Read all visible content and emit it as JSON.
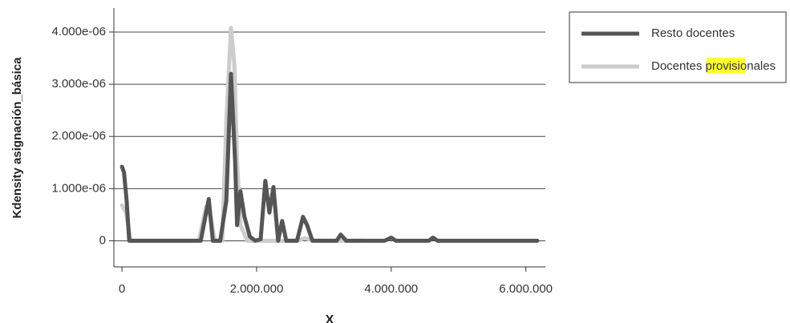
{
  "chart_data": {
    "type": "line",
    "y_label": "Kdensity asignación_básica",
    "x_label": "X",
    "xlim": [
      -120000,
      6290000
    ],
    "ylim": [
      -5e-07,
      4.46e-06
    ],
    "xticks": [
      0,
      {
        "value": 2000000,
        "label": "2.000.000"
      },
      {
        "value": 4000000,
        "label": "4.000.000"
      },
      {
        "value": 6000000,
        "label": "6.000.000"
      }
    ],
    "yticks": [
      0,
      {
        "value": 1e-06,
        "label": "1.000e-06"
      },
      {
        "value": 2e-06,
        "label": "2.000e-06"
      },
      {
        "value": 3e-06,
        "label": "3.000e-06"
      },
      {
        "value": 4e-06,
        "label": "4.000e-06"
      }
    ],
    "grid": true,
    "legend": "right",
    "series": [
      {
        "name": "Resto docentes",
        "color": "#555555",
        "x": [
          0,
          30000,
          70000,
          107000,
          1170000,
          1290000,
          1350000,
          1460000,
          1550000,
          1620000,
          1680000,
          1710000,
          1760000,
          1820000,
          1900000,
          1980000,
          2060000,
          2130000,
          2190000,
          2250000,
          2320000,
          2380000,
          2440000,
          2600000,
          2690000,
          2750000,
          2830000,
          3190000,
          3250000,
          3330000,
          3900000,
          4000000,
          4070000,
          4560000,
          4620000,
          4690000,
          6170000
        ],
        "values": [
          1.42e-06,
          1.31e-06,
          7.7e-07,
          0,
          0,
          8e-07,
          0,
          0,
          7.7e-07,
          3.2e-06,
          1.54e-06,
          3e-07,
          9.5e-07,
          4.6e-07,
          8e-08,
          0,
          3e-08,
          1.15e-06,
          5.4e-07,
          1.03e-06,
          0,
          3.8e-07,
          0,
          0,
          4.6e-07,
          3e-07,
          0,
          0,
          1.2e-07,
          0,
          0,
          6e-08,
          0,
          0,
          6e-08,
          0,
          0
        ]
      },
      {
        "name": "Docentes provisionales",
        "color": "#cccccc",
        "x": [
          0,
          60000,
          130000,
          1140000,
          1250000,
          1310000,
          1380000,
          1490000,
          1550000,
          1620000,
          1670000,
          1710000,
          1760000,
          1860000,
          2600000,
          2710000,
          2860000,
          3600000
        ],
        "values": [
          6.8e-07,
          5.4e-07,
          0,
          0,
          6.5e-07,
          4.9e-07,
          0,
          0,
          2.3e-06,
          4.08e-06,
          3.38e-06,
          1.54e-06,
          3e-07,
          0,
          0,
          5e-08,
          0,
          0
        ]
      }
    ]
  }
}
